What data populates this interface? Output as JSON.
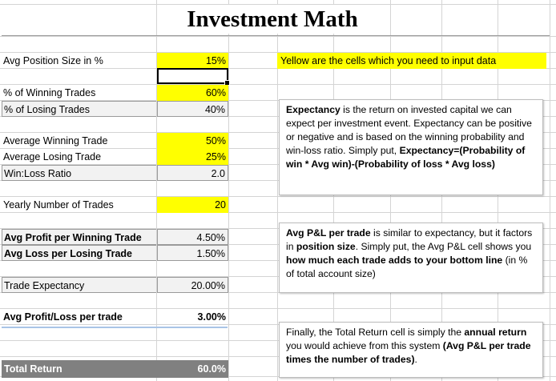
{
  "title": "Investment Math",
  "note": "Yellow are the cells which you need to input data",
  "rows": {
    "avg_position_size": {
      "label": "Avg Position Size in %",
      "value": "15%"
    },
    "pct_winning": {
      "label": "% of Winning Trades",
      "value": "60%"
    },
    "pct_losing": {
      "label": "% of Losing Trades",
      "value": "40%"
    },
    "avg_winning": {
      "label": "Average Winning Trade",
      "value": "50%"
    },
    "avg_losing": {
      "label": "Average Losing Trade",
      "value": "25%"
    },
    "win_loss": {
      "label": "Win:Loss Ratio",
      "value": "2.0"
    },
    "yearly_trades": {
      "label": "Yearly Number of Trades",
      "value": "20"
    },
    "avg_profit_win": {
      "label": "Avg Profit per Winning Trade",
      "value": "4.50%"
    },
    "avg_loss_lose": {
      "label": "Avg Loss per Losing Trade",
      "value": "1.50%"
    },
    "trade_expectancy": {
      "label": "Trade Expectancy",
      "value": "20.00%"
    },
    "avg_pl": {
      "label": "Avg Profit/Loss per trade",
      "value": "3.00%"
    },
    "total_return": {
      "label": "Total Return",
      "value": "60.0%"
    }
  },
  "box1": {
    "t1": "Expectancy",
    "t2": " is the return on invested capital we can expect per investment event. Expectancy can be positive or negative and is based on the winning probability and win-loss ratio. Simply put, ",
    "t3": "Expectancy=(Probability of win * Avg win)-(Probability of loss * Avg loss)"
  },
  "box2": {
    "t1": "Avg P&L per trade",
    "t2": " is similar to expectancy, but it factors in ",
    "t3": "position size",
    "t4": ". Simply put, the Avg P&L cell shows you ",
    "t5": "how much each trade adds to your bottom line",
    "t6": " (in % of total account size)"
  },
  "box3": {
    "t1": "Finally, the Total Return cell is simply the ",
    "t2": "annual return",
    "t3": " you would achieve from this system ",
    "t4": "(Avg P&L per trade times the number of trades)",
    "t5": "."
  },
  "colors": {
    "input": "#ffff00",
    "total_bg": "#808080",
    "gridline": "#d4d4d4"
  }
}
